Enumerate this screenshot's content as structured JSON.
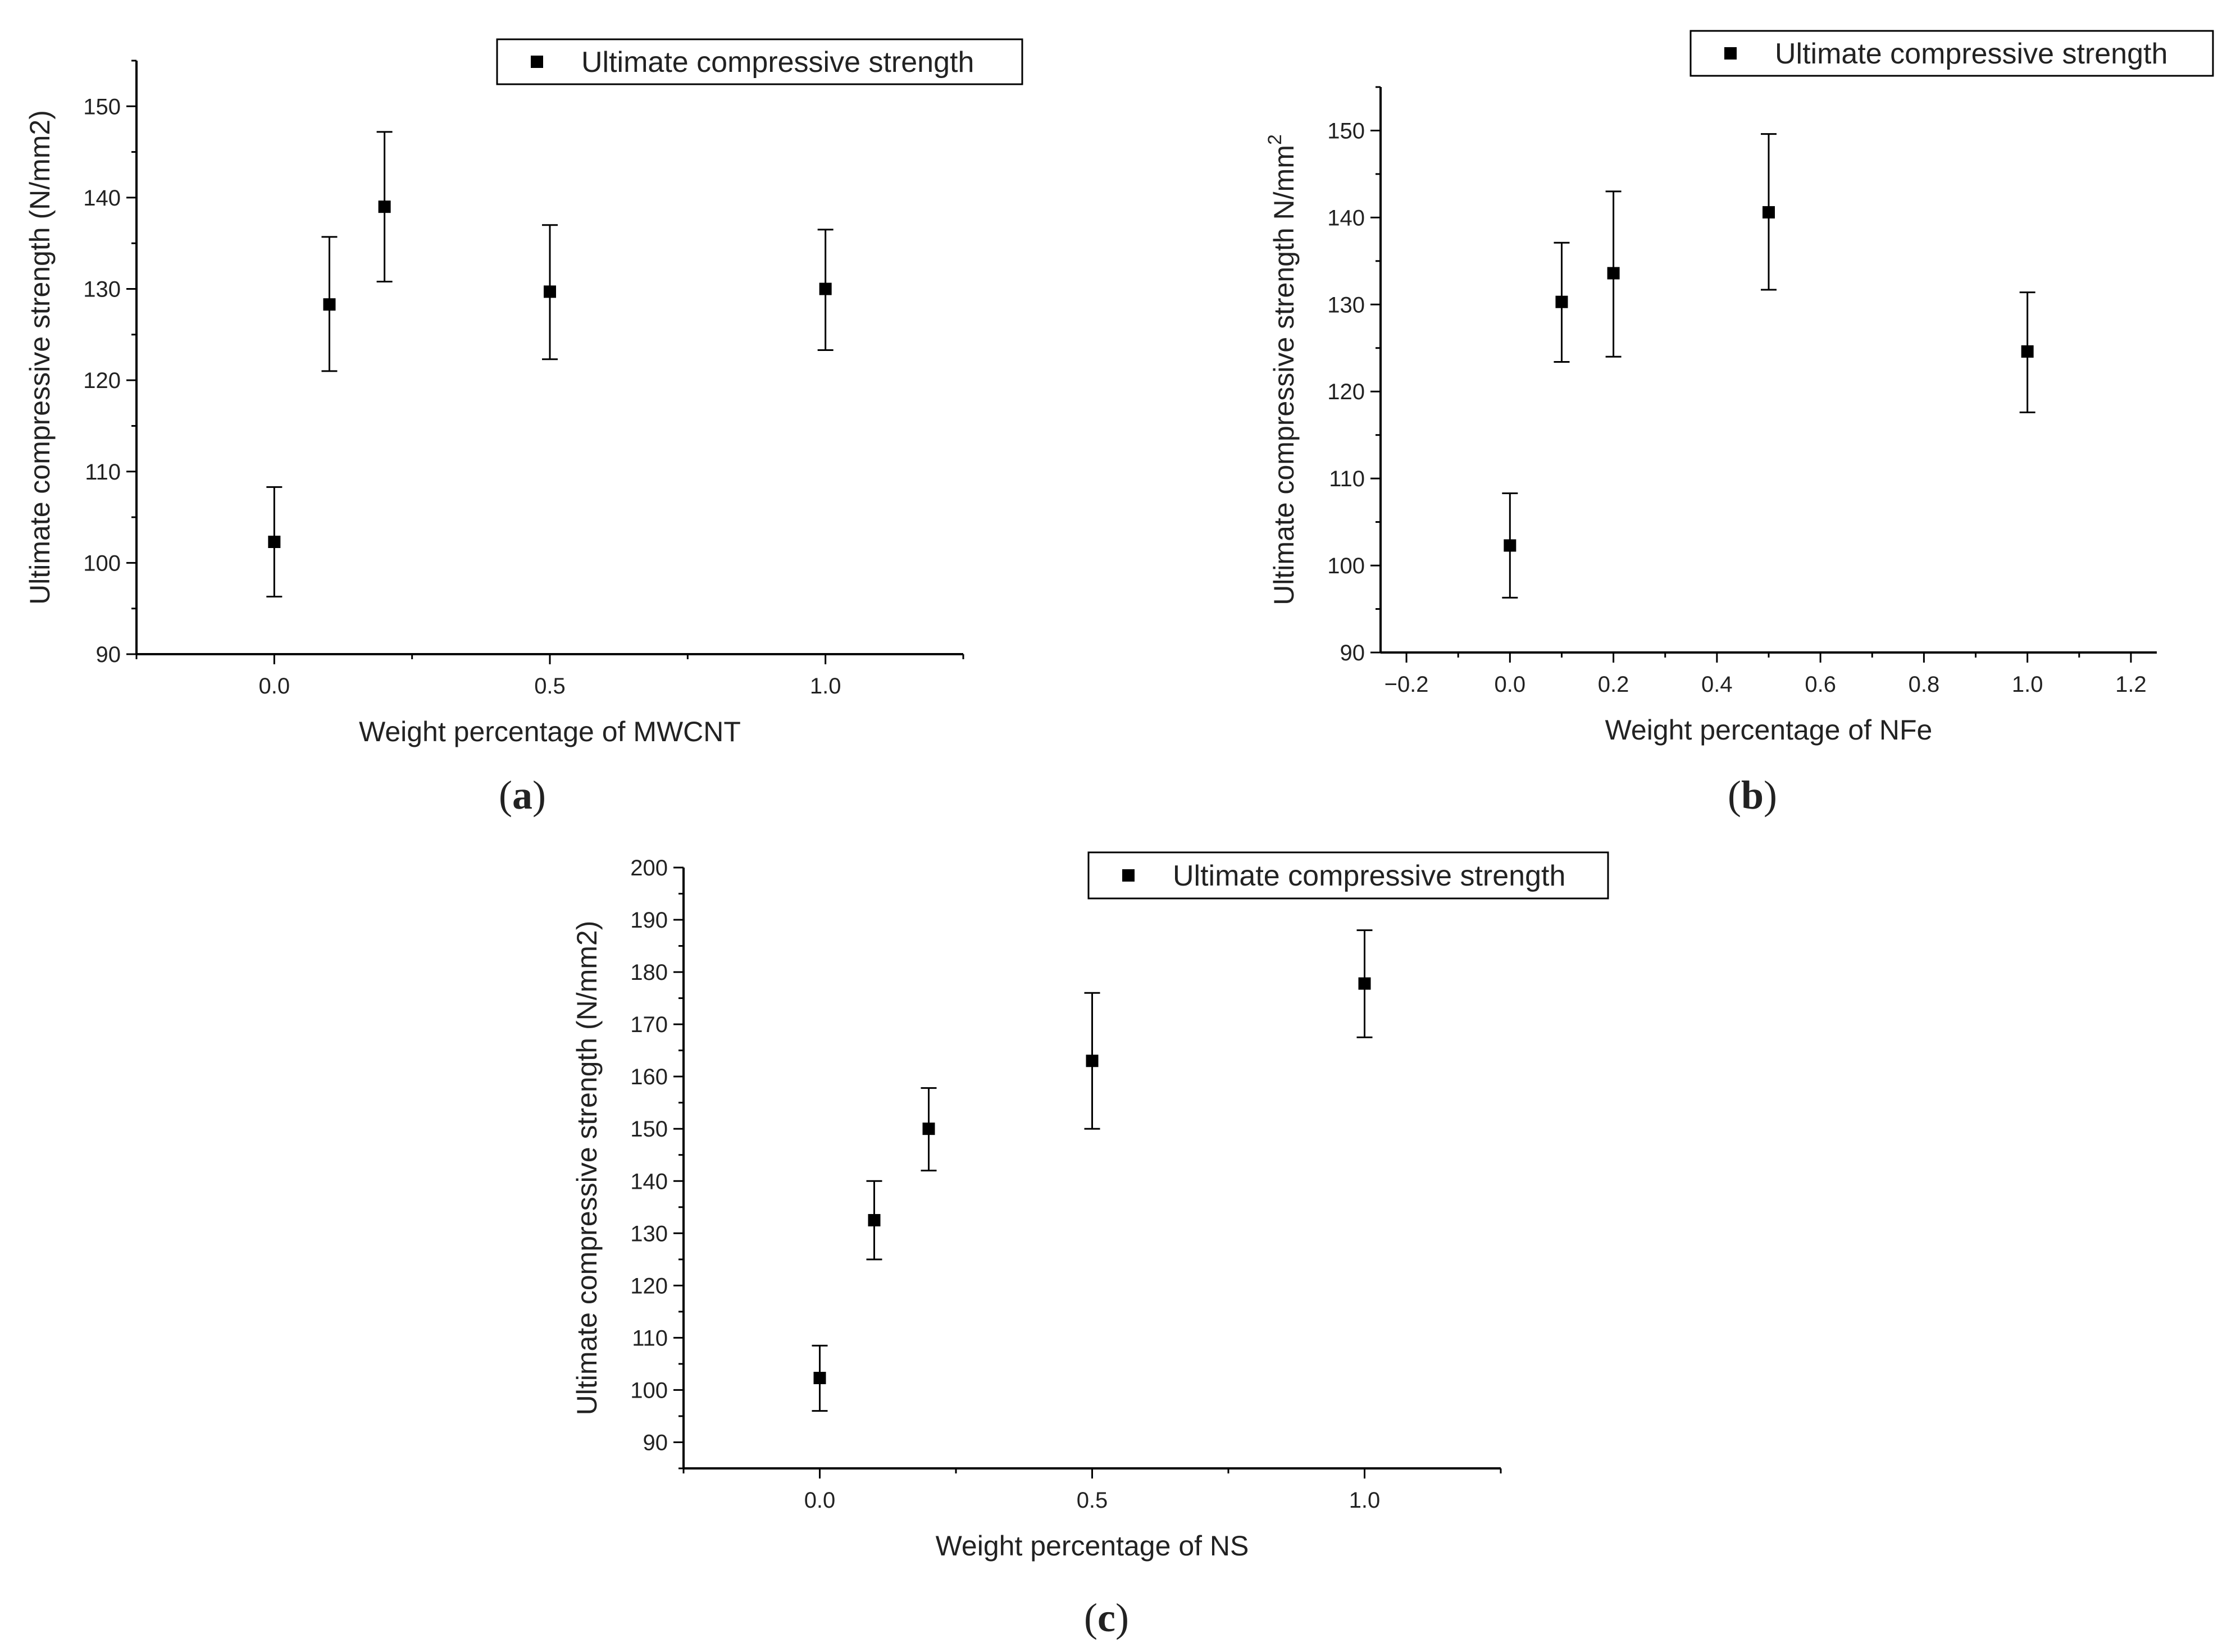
{
  "figure": {
    "colors": {
      "marker": "#000000",
      "axis": "#000000",
      "text": "#222222",
      "legend_border": "#000000"
    }
  },
  "chart_data": [
    {
      "type": "scatter",
      "panel_label_prefix": "(",
      "panel_label_letter": "a",
      "panel_label_suffix": ")",
      "xlabel": "Weight  percentage of MWCNT",
      "ylabel": "Ultimate compressive strength (N/mm2)",
      "ylabel_sup": "",
      "xlim": [
        -0.25,
        1.25
      ],
      "ylim": [
        90,
        155
      ],
      "xticks": [
        0.0,
        0.5,
        1.0
      ],
      "xtick_labels": [
        "0.0",
        "0.5",
        "1.0"
      ],
      "yticks": [
        90,
        100,
        110,
        120,
        130,
        140,
        150
      ],
      "ytick_labels": [
        "90",
        "100",
        "110",
        "120",
        "130",
        "140",
        "150"
      ],
      "legend": {
        "label": "Ultimate compressive strength",
        "placement": "top-right"
      },
      "series": [
        {
          "name": "Ultimate compressive strength",
          "x": [
            0.0,
            0.1,
            0.2,
            0.5,
            1.0
          ],
          "y": [
            102.3,
            128.3,
            139.0,
            129.7,
            130.0
          ],
          "err_low": [
            96.3,
            121.0,
            130.8,
            122.3,
            123.3
          ],
          "err_high": [
            108.3,
            135.7,
            147.2,
            137.0,
            136.5
          ]
        }
      ]
    },
    {
      "type": "scatter",
      "panel_label_prefix": "(",
      "panel_label_letter": "b",
      "panel_label_suffix": ")",
      "xlabel": "Weight percentage of NFe",
      "ylabel": "Ultimate compressive strength N/mm",
      "ylabel_sup": "2",
      "xlim": [
        -0.25,
        1.25
      ],
      "ylim": [
        90,
        155
      ],
      "xticks": [
        -0.2,
        0.0,
        0.2,
        0.4,
        0.6,
        0.8,
        1.0,
        1.2
      ],
      "xtick_labels": [
        "−0.2",
        "0.0",
        "0.2",
        "0.4",
        "0.6",
        "0.8",
        "1.0",
        "1.2"
      ],
      "yticks": [
        90,
        100,
        110,
        120,
        130,
        140,
        150
      ],
      "ytick_labels": [
        "90",
        "100",
        "110",
        "120",
        "130",
        "140",
        "150"
      ],
      "legend": {
        "label": "Ultimate compressive strength",
        "placement": "top-right"
      },
      "series": [
        {
          "name": "Ultimate compressive strength",
          "x": [
            0.0,
            0.1,
            0.2,
            0.5,
            1.0
          ],
          "y": [
            102.3,
            130.3,
            133.6,
            140.6,
            124.6
          ],
          "err_low": [
            96.3,
            123.4,
            124.0,
            131.7,
            117.6
          ],
          "err_high": [
            108.3,
            137.1,
            143.0,
            149.6,
            131.4
          ]
        }
      ]
    },
    {
      "type": "scatter",
      "panel_label_prefix": "(",
      "panel_label_letter": "c",
      "panel_label_suffix": ")",
      "xlabel": "Weight percentage of NS",
      "ylabel": "Ultimate compressive strength (N/mm2)",
      "ylabel_sup": "",
      "xlim": [
        -0.25,
        1.25
      ],
      "ylim": [
        85,
        200
      ],
      "xticks": [
        0.0,
        0.5,
        1.0
      ],
      "xtick_labels": [
        "0.0",
        "0.5",
        "1.0"
      ],
      "yticks": [
        90,
        100,
        110,
        120,
        130,
        140,
        150,
        160,
        170,
        180,
        190,
        200
      ],
      "ytick_labels": [
        "90",
        "100",
        "110",
        "120",
        "130",
        "140",
        "150",
        "160",
        "170",
        "180",
        "190",
        "200"
      ],
      "legend": {
        "label": "Ultimate compressive strength",
        "placement": "top-right"
      },
      "series": [
        {
          "name": "Ultimate compressive strength",
          "x": [
            0.0,
            0.1,
            0.2,
            0.5,
            1.0
          ],
          "y": [
            102.3,
            132.5,
            150.0,
            163.0,
            177.8
          ],
          "err_low": [
            96.0,
            125.0,
            142.0,
            150.0,
            167.5
          ],
          "err_high": [
            108.5,
            140.0,
            157.8,
            176.0,
            188.0
          ]
        }
      ]
    }
  ]
}
